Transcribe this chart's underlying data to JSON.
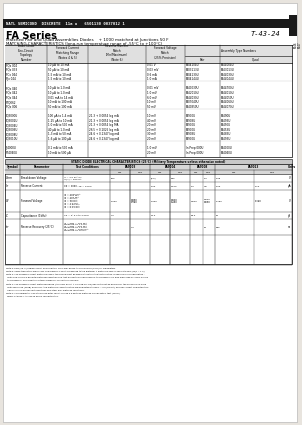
{
  "bg_color": "#e8e4de",
  "page_bg": "#ffffff",
  "title_bar": "NATL SEMICOND  DISCRETE  11a u   6501130 0037012 1",
  "series_title": "FA Series",
  "subtitle1": "Matched Pair and Quad Assemblies Diodes",
  "subtitle2": "+ 1000 matched at Junctions 50 F",
  "subtitle3": "MATCHING CHARACTERISTICS (long-run temperature range of -55°C to +100°C)",
  "doc_number": "T-43-24",
  "table1_col_headers": [
    "Basic Diode\nFlex-Circuit\nTopology\nNumber",
    "Forward Current\nMatching Range\n(Notes 4 & 5)",
    "Reverse Current\nMatch\n(Min/Maximum)\n(Note 6)",
    "Forward Voltage\nMatch\n(25% Precision)",
    "Pair",
    "Quad"
  ],
  "table1_rows": [
    [
      "FQx 004",
      "10 μA to 10 mA",
      "",
      "0.01 V",
      "FA04104U",
      "FA44004U"
    ],
    [
      "FQx 033",
      "50 μA to 10 mA",
      "",
      "0.03 mV",
      "FA03113U",
      "FA43013U"
    ],
    [
      "FCx 044",
      "1.5 mA to 10 mA",
      "",
      "0.6 mA",
      "FA04130U",
      "FA44030U"
    ],
    [
      "FJx 044",
      "1.5 mA to 10 mA",
      "",
      "1.0 mA",
      "FA04144U",
      "FA44044U"
    ],
    [
      "",
      "",
      "",
      "",
      "",
      ""
    ],
    [
      "FQx 040",
      "10 μA to 1.0 mA",
      "",
      "0.01 mV",
      "FA40030U",
      "FA44700U"
    ],
    [
      "FQx 042",
      "10 μA to 1.0 mA",
      "",
      "1.0 mV",
      "FA42010U",
      "FA44010U"
    ],
    [
      "FQx 044",
      "0.01 mA to 14 mA",
      "",
      "6.0 mV",
      "FA44030U",
      "FA44050U"
    ],
    [
      "FTQ062",
      "10 mA to 100 mA",
      "",
      "10 mV",
      "FA07040U",
      "FA44060U"
    ],
    [
      "FQx 006",
      "50 mA to 100 mA",
      "",
      "50 mV",
      "FA40350U",
      "FA44070U"
    ],
    [
      "",
      "",
      "",
      "",
      "",
      ""
    ],
    [
      "FQ3000U",
      "100 μA to 1.4 mA",
      "21.3 + 0.0054 log mA",
      "10 mV",
      "FA900U",
      "FA490U"
    ],
    [
      "FQ3002U",
      "1.25 μA to 10 mA",
      "21.3 + 0.0054 log mA",
      "40 mV",
      "FA903U",
      "FA493U"
    ],
    [
      "FQ3004U",
      "1.0 mA to 500 mA",
      "21.3 + 0.0054 log MA",
      "20 mV",
      "FA900U",
      "FA450U"
    ],
    [
      "FQ3006U",
      "40 μA to 1.0 mA",
      "26.5 + 0.1025 log mA",
      "20 mV",
      "FA900U",
      "FA453U"
    ],
    [
      "FQ3008U",
      "1-3 mA to 50 mA",
      "24.6 + 0.1347 log mA",
      "30 mV",
      "FA903U",
      "FA483U"
    ],
    [
      "FQ3010U",
      "1.6 μA to 100 μA",
      "24.6 + 0.1347 log mA",
      "20 mV",
      "FA900U",
      "FA493U"
    ],
    [
      "",
      "",
      "",
      "",
      "",
      ""
    ],
    [
      "FJ4000U",
      "0.1 mA to 500 mA",
      "",
      "1.0 mV",
      "In Prep 000U",
      "FA4000U"
    ],
    [
      "FT4040U",
      "10 mA to 500 μA",
      "",
      "20 mV",
      "In Prep 000U",
      "FA4040U"
    ]
  ],
  "elec_header": "STATIC DIODE ELECTRICAL CHARACTERISTICS (25°C) (Military Temperature unless otherwise noted)",
  "elec_col1": [
    "Symbol",
    "Parameter",
    "Test Conditions"
  ],
  "elec_part_cols": [
    "FA9003",
    "FA9004",
    "FA9008",
    "FA9013"
  ],
  "elec_sub": [
    "Min",
    "Max",
    "Min",
    "Max",
    "NOT",
    "MAX",
    "Min  -  Max"
  ],
  "elec_units": "Units",
  "elec_rows": [
    {
      "sym": "Vrrm",
      "param": "Breakdown Voltage",
      "cond": "Ir = 4.0 μA; Vδ\nIr(rr) = 500 μA",
      "v9003": [
        "100",
        ""
      ],
      "v9004": [
        "(p.o)",
        "400"
      ],
      "v9008": [
        "",
        "1.0"
      ],
      "v9013": [
        "1.95",
        ""
      ],
      "units": "V"
    },
    {
      "sym": "Ir",
      "param": "Reverse Current",
      "cond": "VR = 100V\nVR = 100V, Tα = 100%",
      "v9003": [
        "",
        ""
      ],
      "v9004": [
        "1.00",
        "~100"
      ],
      "v9008": [
        "1.0",
        "3.5"
      ],
      "v9013": [
        "1.00",
        "1.10"
      ],
      "units": "μA"
    },
    {
      "sym": "VF",
      "param": "Forward Voltage",
      "cond": "IF = 1000 mA\nIF = 500 mA\nIF = 100 mA\nIF = 50 mA\nIF = 30 mA\nIF = 10 mA\nIF = 1.0 mA\nIF = 0.50 mA\nIF = 0.10 mA\nIF = 1.0 mA",
      "v9003": [
        "1.000",
        "0.85-10"
      ],
      "v9004": [
        "",
        "0.920\n0.540\n0.840\n0.790\n0.800\n0.770\n0.730\n0.900"
      ],
      "v9008": [
        "",
        "0.640\n0.590\n0.540\n0.640\n0.710\n0.750\n0.754"
      ],
      "v9013": [
        "",
        ""
      ],
      "units": "V"
    },
    {
      "sym": "C",
      "param": "Capacitance (1kHz)",
      "cond": "VR = 0, 0.4 to 4 nFm",
      "v9003": [
        "4.0",
        ""
      ],
      "v9004": [
        "12.0",
        ""
      ],
      "v9008": [
        "40.0",
        ""
      ],
      "v9013": [
        "50",
        ""
      ],
      "units": "pF"
    },
    {
      "sym": "trr",
      "param": "Reverse Recovery (25°C)",
      "cond": "IF = IRM = 100 mA\nMeasure ns 1.0 mA\nIF = IRM = 200 mA\nMeasure ns 1.0 mA\nIF = IRM = 1000 mA\nMeasure ns 10 mA",
      "v9003": [
        "",
        "4.0"
      ],
      "v9004": [
        "",
        ""
      ],
      "v9008": [
        "",
        "50"
      ],
      "v9013": [
        "800",
        ""
      ],
      "units": "ns"
    }
  ],
  "notes": [
    "Note a: Pass (2.5V) adding 100μA unless within 1% is well above its pulse ripple (1V%) for parameters.",
    "Note b: Some transistors while 11M. The memory v must be applied in to the platform + matching here in one note called (dv/T = 1 V).",
    "Note 3: The Forward Current matching range, the device must be applied to within the test function, measured in a configuration - matching here in a definite\n  matching operation and that during the forward the period, The forward VF is also measured by 100% during the forward V. or in addition 0 items 4\n  based on 1% unit are 1000mV.",
    "Note 4: The Forward Current Matching Range (Accuracy 50 μA + 0.05 dB per dB per unit must be applied for the 20 log 0.5 is a low matched diode (30dB)\n  frequency, the matching characteristics are guaranteed to be IF = 0.5 (50 mA) and per current characteristics can in 1.0 V in 50 per unit conditions and\n  other well matched conditions.",
    "Note 5: This parameter has a tolerance after a 100μA can be 0.5 dB and then can be matched similar data 1 test (100%).",
    "T-FWD-T-AS0437, AT-16245 and is connected to T."
  ]
}
